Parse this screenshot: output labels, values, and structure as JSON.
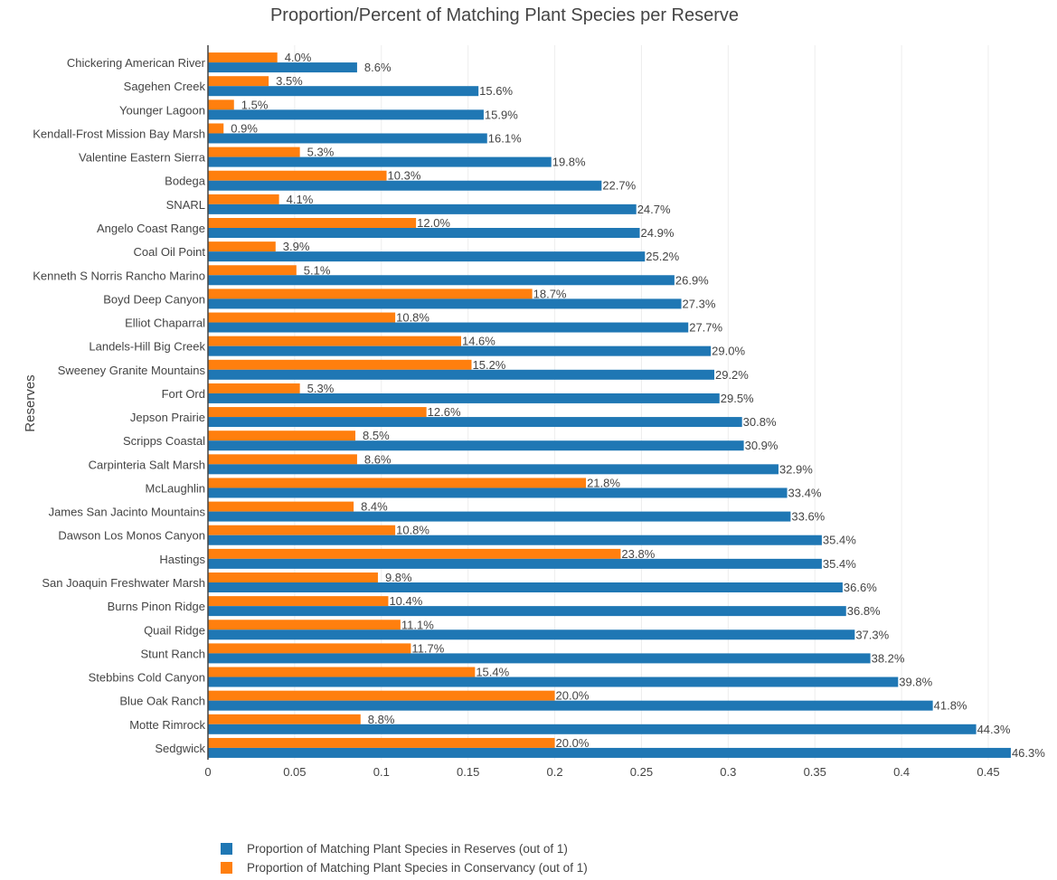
{
  "chart_data": {
    "type": "bar",
    "orientation": "horizontal",
    "title": "Proportion/Percent of Matching Plant Species per Reserve",
    "ylabel": "Reserves",
    "xlabel": "",
    "xlim": [
      0,
      0.46
    ],
    "xticks": [
      0,
      0.05,
      0.1,
      0.15,
      0.2,
      0.25,
      0.3,
      0.35,
      0.4,
      0.45
    ],
    "xtick_labels": [
      "0",
      "0.05",
      "0.1",
      "0.15",
      "0.2",
      "0.25",
      "0.3",
      "0.35",
      "0.4",
      "0.45"
    ],
    "grid": "vertical",
    "legend_position": "bottom",
    "categories": [
      "Chickering American River",
      "Sagehen Creek",
      "Younger Lagoon",
      "Kendall-Frost Mission Bay Marsh",
      "Valentine Eastern Sierra",
      "Bodega",
      "SNARL",
      "Angelo Coast Range",
      "Coal Oil Point",
      "Kenneth S Norris Rancho Marino",
      "Boyd Deep Canyon",
      "Elliot Chaparral",
      "Landels-Hill Big Creek",
      "Sweeney Granite Mountains",
      "Fort Ord",
      "Jepson Prairie",
      "Scripps Coastal",
      "Carpinteria Salt Marsh",
      "McLaughlin",
      "James San Jacinto Mountains",
      "Dawson Los Monos Canyon",
      "Hastings",
      "San Joaquin Freshwater Marsh",
      "Burns Pinon Ridge",
      "Quail Ridge",
      "Stunt Ranch",
      "Stebbins Cold Canyon",
      "Blue Oak Ranch",
      "Motte Rimrock",
      "Sedgwick"
    ],
    "series": [
      {
        "name": "Proportion of Matching Plant Species in Reserves (out of 1)",
        "color": "#1f77b4",
        "values": [
          0.086,
          0.156,
          0.159,
          0.161,
          0.198,
          0.227,
          0.247,
          0.249,
          0.252,
          0.269,
          0.273,
          0.277,
          0.29,
          0.292,
          0.295,
          0.308,
          0.309,
          0.329,
          0.334,
          0.336,
          0.354,
          0.354,
          0.366,
          0.368,
          0.373,
          0.382,
          0.398,
          0.418,
          0.443,
          0.463
        ],
        "labels": [
          "8.6%",
          "15.6%",
          "15.9%",
          "16.1%",
          "19.8%",
          "22.7%",
          "24.7%",
          "24.9%",
          "25.2%",
          "26.9%",
          "27.3%",
          "27.7%",
          "29.0%",
          "29.2%",
          "29.5%",
          "30.8%",
          "30.9%",
          "32.9%",
          "33.4%",
          "33.6%",
          "35.4%",
          "35.4%",
          "36.6%",
          "36.8%",
          "37.3%",
          "38.2%",
          "39.8%",
          "41.8%",
          "44.3%",
          "46.3%"
        ]
      },
      {
        "name": "Proportion of Matching Plant Species in Conservancy (out of 1)",
        "color": "#ff7f0e",
        "values": [
          0.04,
          0.035,
          0.015,
          0.009,
          0.053,
          0.103,
          0.041,
          0.12,
          0.039,
          0.051,
          0.187,
          0.108,
          0.146,
          0.152,
          0.053,
          0.126,
          0.085,
          0.086,
          0.218,
          0.084,
          0.108,
          0.238,
          0.098,
          0.104,
          0.111,
          0.117,
          0.154,
          0.2,
          0.088,
          0.2
        ],
        "labels": [
          "4.0%",
          "3.5%",
          "1.5%",
          "0.9%",
          "5.3%",
          "10.3%",
          "4.1%",
          "12.0%",
          "3.9%",
          "5.1%",
          "18.7%",
          "10.8%",
          "14.6%",
          "15.2%",
          "5.3%",
          "12.6%",
          "8.5%",
          "8.6%",
          "21.8%",
          "8.4%",
          "10.8%",
          "23.8%",
          "9.8%",
          "10.4%",
          "11.1%",
          "11.7%",
          "15.4%",
          "20.0%",
          "8.8%",
          "20.0%"
        ]
      }
    ]
  }
}
